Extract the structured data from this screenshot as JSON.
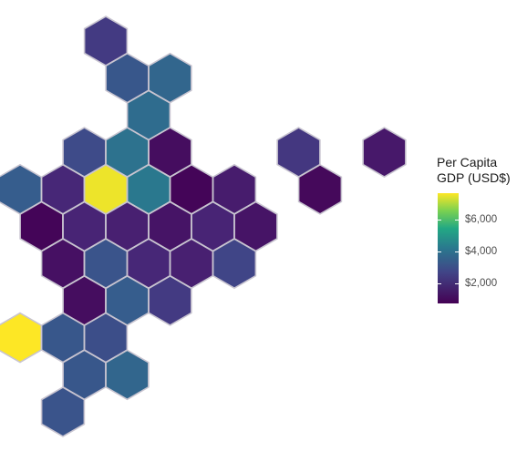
{
  "legend": {
    "title_line1": "Per Capita",
    "title_line2": "GDP (USD$)",
    "ticks": [
      {
        "label": "$6,000",
        "value": 6000
      },
      {
        "label": "$4,000",
        "value": 4000
      },
      {
        "label": "$2,000",
        "value": 2000
      }
    ],
    "range": [
      700,
      7700
    ],
    "colors": {
      "low": "#440154",
      "mid_low": "#414487",
      "mid": "#2a788e",
      "mid_high": "#22a884",
      "high": "#fde725"
    }
  },
  "map": {
    "hex_border_color": "#c8c4d0",
    "tiles": [
      {
        "row": 0,
        "col": 0,
        "value": 2200
      },
      {
        "row": 1,
        "col": 0,
        "value": 3100
      },
      {
        "row": 1,
        "col": 1,
        "value": 3600
      },
      {
        "row": 2,
        "col": 1,
        "value": 3800
      },
      {
        "row": 3,
        "col": -1,
        "value": 2700
      },
      {
        "row": 3,
        "col": 0,
        "value": 4000
      },
      {
        "row": 3,
        "col": 1,
        "value": 1000
      },
      {
        "row": 3,
        "col": 4,
        "value": 2100
      },
      {
        "row": 3,
        "col": 6,
        "value": 1300
      },
      {
        "row": 4,
        "col": -2,
        "value": 3300
      },
      {
        "row": 4,
        "col": -1,
        "value": 1700
      },
      {
        "row": 4,
        "col": 0,
        "value": 7600
      },
      {
        "row": 4,
        "col": 1,
        "value": 4200
      },
      {
        "row": 4,
        "col": 2,
        "value": 800
      },
      {
        "row": 4,
        "col": 3,
        "value": 1400
      },
      {
        "row": 4,
        "col": 5,
        "value": 900
      },
      {
        "row": 5,
        "col": -2,
        "value": 800
      },
      {
        "row": 5,
        "col": -1,
        "value": 1600
      },
      {
        "row": 5,
        "col": 0,
        "value": 1500
      },
      {
        "row": 5,
        "col": 1,
        "value": 1200
      },
      {
        "row": 5,
        "col": 2,
        "value": 1600
      },
      {
        "row": 5,
        "col": 3,
        "value": 1200
      },
      {
        "row": 6,
        "col": -1,
        "value": 1100
      },
      {
        "row": 6,
        "col": 0,
        "value": 3000
      },
      {
        "row": 6,
        "col": 1,
        "value": 1700
      },
      {
        "row": 6,
        "col": 2,
        "value": 1500
      },
      {
        "row": 6,
        "col": 3,
        "value": 2500
      },
      {
        "row": 7,
        "col": -1,
        "value": 1000
      },
      {
        "row": 7,
        "col": 0,
        "value": 3300
      },
      {
        "row": 7,
        "col": 1,
        "value": 2200
      },
      {
        "row": 8,
        "col": -2,
        "value": 7700
      },
      {
        "row": 8,
        "col": -1,
        "value": 3100
      },
      {
        "row": 8,
        "col": 0,
        "value": 2800
      },
      {
        "row": 9,
        "col": -1,
        "value": 3100
      },
      {
        "row": 9,
        "col": 0,
        "value": 3600
      },
      {
        "row": 10,
        "col": -1,
        "value": 3000
      }
    ]
  }
}
